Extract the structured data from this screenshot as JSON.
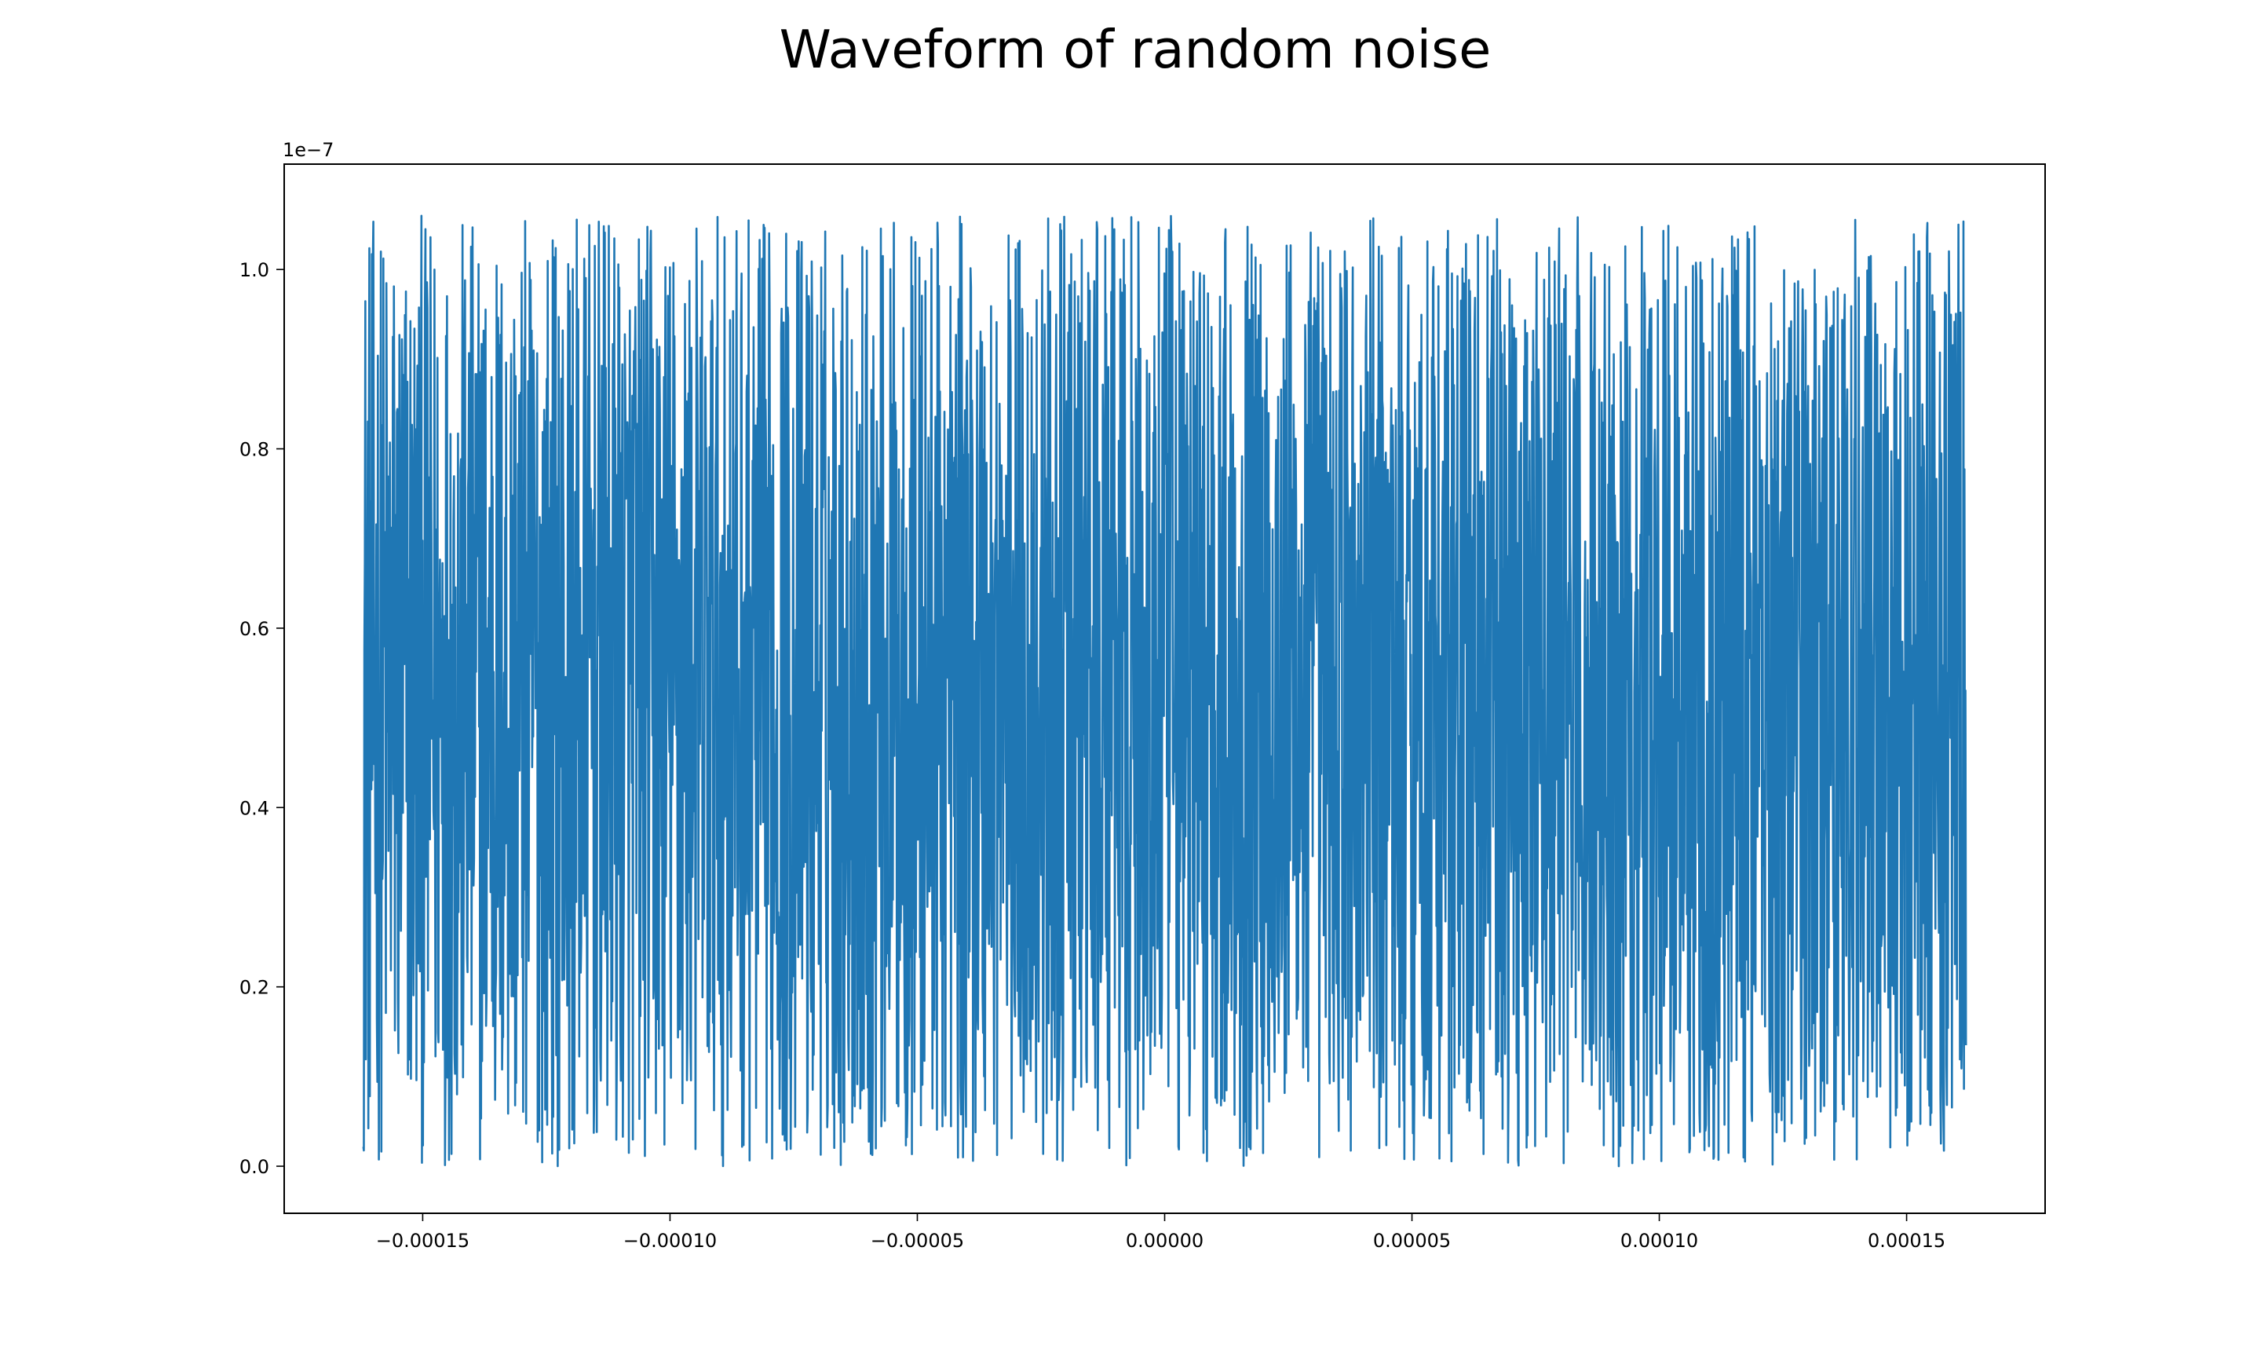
{
  "chart_data": {
    "type": "line",
    "title": "Waveform of random noise",
    "xlabel": "",
    "ylabel": "",
    "y_offset_label": "1e−7",
    "xlim": [
      -0.000178,
      0.000178
    ],
    "ylim": [
      -0.0525,
      1.1175
    ],
    "x_range": [
      -0.000162,
      0.000162
    ],
    "y_value_range": [
      0.0,
      1.06
    ],
    "x_ticks": [
      -0.00015,
      -0.0001,
      -5e-05,
      0.0,
      5e-05,
      0.0001,
      0.00015
    ],
    "x_tick_labels": [
      "−0.00015",
      "−0.00010",
      "−0.00005",
      "0.00000",
      "0.00005",
      "0.00010",
      "0.00015"
    ],
    "y_ticks": [
      0.0,
      0.2,
      0.4,
      0.6,
      0.8,
      1.0
    ],
    "y_tick_labels": [
      "0.0",
      "0.2",
      "0.4",
      "0.6",
      "0.8",
      "1.0"
    ],
    "n_points": 3200,
    "series": [
      {
        "name": "",
        "color": "#1f77b4",
        "description": "random noise between 0 and 1.06e-7"
      }
    ],
    "grid": false,
    "legend": "none"
  }
}
